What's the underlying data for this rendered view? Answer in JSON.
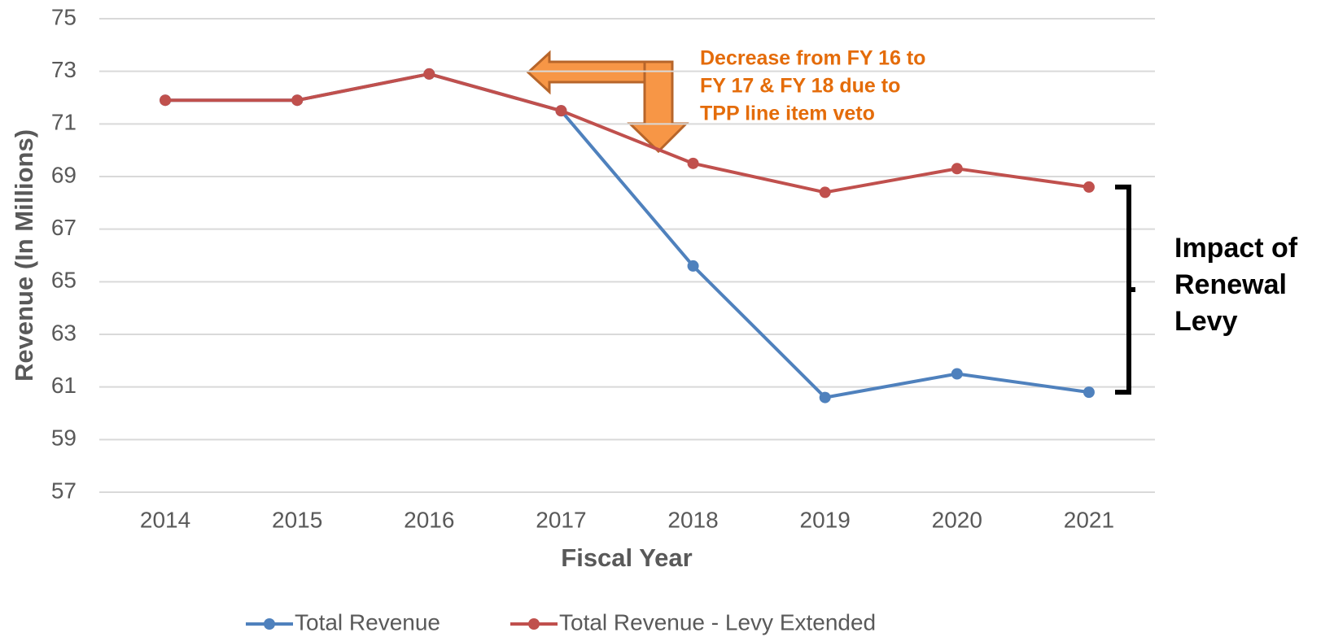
{
  "chart_data": {
    "type": "line",
    "x_label": "Fiscal Year",
    "y_label": "Revenue (In Millions)",
    "categories": [
      "2014",
      "2015",
      "2016",
      "2017",
      "2018",
      "2019",
      "2020",
      "2021"
    ],
    "series": [
      {
        "name": "Total Revenue",
        "color": "#4f81bd",
        "values": [
          71.9,
          71.9,
          72.9,
          71.5,
          65.6,
          60.6,
          61.5,
          60.8
        ]
      },
      {
        "name": "Total Revenue - Levy Extended",
        "color": "#c0504d",
        "values": [
          71.9,
          71.9,
          72.9,
          71.5,
          69.5,
          68.4,
          69.3,
          68.6
        ]
      }
    ],
    "ylim": [
      57,
      75
    ],
    "yticks": [
      57,
      59,
      61,
      63,
      65,
      67,
      69,
      71,
      73,
      75
    ],
    "grid": true,
    "legend": "bottom",
    "annotations": [
      {
        "lines": [
          "Decrease from FY 16 to",
          "FY 17 & FY 18 due to",
          "TPP line item veto"
        ]
      },
      {
        "lines": [
          "Impact of",
          "Renewal",
          "Levy"
        ]
      }
    ]
  }
}
